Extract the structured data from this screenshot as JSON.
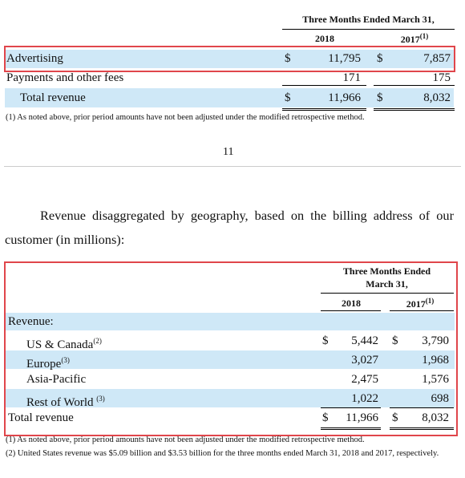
{
  "table1": {
    "header": "Three Months Ended March 31,",
    "years": [
      "2018",
      "2017"
    ],
    "year_note": "(1)",
    "rows": [
      {
        "label": "Advertising",
        "cur_a": "$",
        "a": "11,795",
        "cur_b": "$",
        "b": "7,857"
      },
      {
        "label": "Payments and other fees",
        "a": "171",
        "b": "175"
      },
      {
        "label": "Total revenue",
        "cur_a": "$",
        "a": "11,966",
        "cur_b": "$",
        "b": "8,032"
      }
    ]
  },
  "table1_note": "(1) As noted above, prior period amounts have not been adjusted under the modified retrospective method.",
  "page_number": "11",
  "paragraph": "Revenue disaggregated by geography, based on the billing address of our customer (in millions):",
  "table2": {
    "header": [
      "Three Months Ended",
      "March 31,"
    ],
    "years": [
      "2018",
      "2017"
    ],
    "year_note": "(1)",
    "section": "Revenue:",
    "rows": [
      {
        "label": "US & Canada",
        "note": "(2)",
        "cur_a": "$",
        "a": "5,442",
        "cur_b": "$",
        "b": "3,790"
      },
      {
        "label": "Europe",
        "note": "(3)",
        "a": "3,027",
        "b": "1,968"
      },
      {
        "label": "Asia-Pacific",
        "a": "2,475",
        "b": "1,576"
      },
      {
        "label": "Rest of World ",
        "note": "(3)",
        "a": "1,022",
        "b": "698"
      },
      {
        "label": "Total revenue",
        "cur_a": "$",
        "a": "11,966",
        "cur_b": "$",
        "b": "8,032"
      }
    ]
  },
  "footnotes": [
    "(1) As noted above, prior period amounts have not been adjusted under the modified retrospective method.",
    "(2) United States revenue was $5.09 billion and $3.53 billion for the three months ended March 31, 2018 and 2017, respectively."
  ]
}
